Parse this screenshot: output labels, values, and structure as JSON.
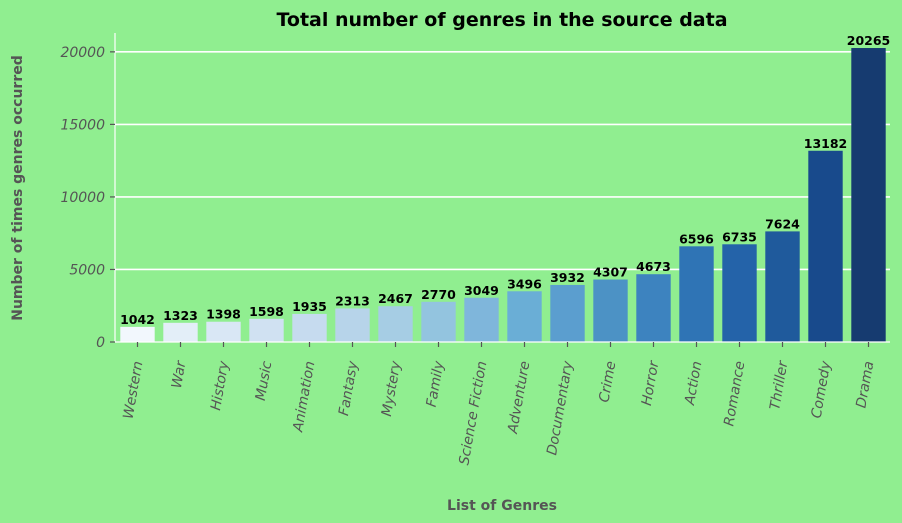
{
  "chart_data": {
    "type": "bar",
    "title": "Total number of genres in the source data",
    "xlabel": "List of Genres",
    "ylabel": "Number of times genres occurred",
    "categories": [
      "Western",
      "War",
      "History",
      "Music",
      "Animation",
      "Fantasy",
      "Mystery",
      "Family",
      "Science Fiction",
      "Adventure",
      "Documentary",
      "Crime",
      "Horror",
      "Action",
      "Romance",
      "Thriller",
      "Comedy",
      "Drama"
    ],
    "values": [
      1042,
      1323,
      1398,
      1598,
      1935,
      2313,
      2467,
      2770,
      3049,
      3496,
      3932,
      4307,
      4673,
      6596,
      6735,
      7624,
      13182,
      20265
    ],
    "yticks": [
      0,
      5000,
      10000,
      15000,
      20000
    ],
    "ylim": [
      0,
      21300
    ],
    "grid": "horizontal",
    "colors": {
      "background": "#90ee90",
      "gridline": "#ffffff",
      "bars": [
        "#f2f7fd",
        "#e3eef8",
        "#d9e7f5",
        "#d0e1f2",
        "#c6dbef",
        "#b7d4ea",
        "#a6cde4",
        "#93c4df",
        "#7fb6db",
        "#6aaed6",
        "#5b9ecf",
        "#4c92c5",
        "#3d83bf",
        "#2f74b5",
        "#2463a9",
        "#1f5a9c",
        "#184a8c",
        "#163b70"
      ]
    }
  }
}
